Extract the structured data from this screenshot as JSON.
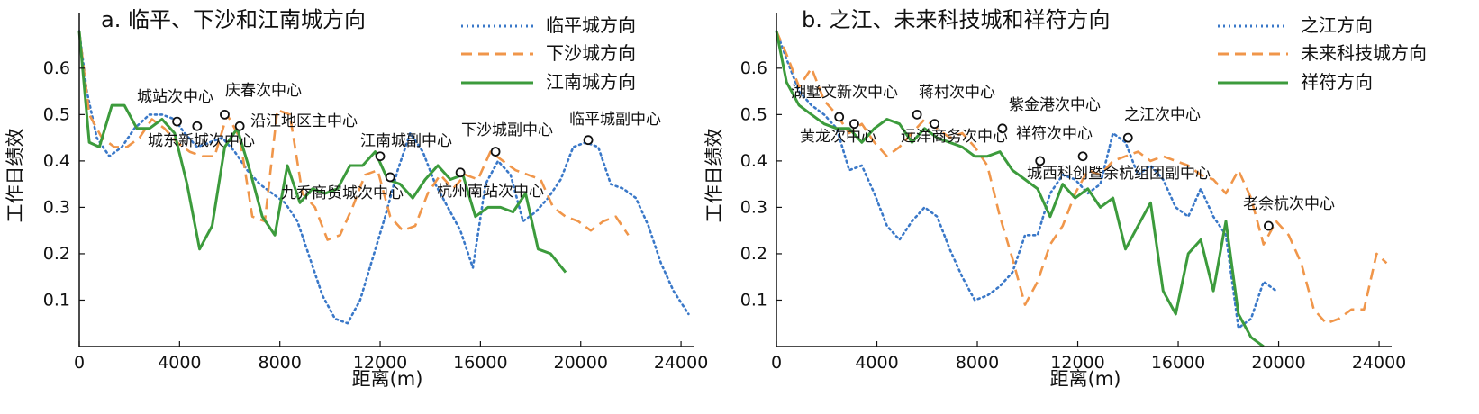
{
  "chart_data": [
    {
      "type": "line",
      "title": "a. 临平、下沙和江南城方向",
      "xlabel": "距离(m)",
      "ylabel": "工作日绩效",
      "xlim": [
        0,
        24500
      ],
      "ylim": [
        0,
        0.72
      ],
      "xticks": [
        0,
        4000,
        8000,
        12000,
        16000,
        20000,
        24000
      ],
      "yticks": [
        0.1,
        0.2,
        0.3,
        0.4,
        0.5,
        0.6
      ],
      "legend_position": "top-right",
      "series": [
        {
          "name": "临平城方向",
          "style": "dotted",
          "color": "#3a78c8",
          "x": [
            0,
            300,
            700,
            1200,
            1700,
            2200,
            2800,
            3300,
            3800,
            4200,
            4700,
            5200,
            5700,
            6200,
            6700,
            7200,
            7700,
            8200,
            8700,
            9200,
            9700,
            10200,
            10700,
            11200,
            11700,
            12200,
            12700,
            13200,
            13700,
            14200,
            14700,
            15200,
            15700,
            16200,
            16700,
            17200,
            17700,
            18200,
            18700,
            19200,
            19700,
            20200,
            20700,
            21200,
            21700,
            22200,
            22700,
            23200,
            23700,
            24300
          ],
          "y": [
            0.68,
            0.55,
            0.45,
            0.41,
            0.43,
            0.47,
            0.5,
            0.5,
            0.49,
            0.46,
            0.43,
            0.44,
            0.45,
            0.42,
            0.38,
            0.35,
            0.33,
            0.31,
            0.27,
            0.19,
            0.11,
            0.06,
            0.05,
            0.1,
            0.19,
            0.28,
            0.38,
            0.46,
            0.42,
            0.35,
            0.3,
            0.25,
            0.17,
            0.35,
            0.4,
            0.37,
            0.27,
            0.29,
            0.32,
            0.36,
            0.43,
            0.44,
            0.43,
            0.35,
            0.34,
            0.32,
            0.26,
            0.18,
            0.12,
            0.07
          ]
        },
        {
          "name": "下沙城方向",
          "style": "dashed",
          "color": "#f0964a",
          "x": [
            0,
            400,
            900,
            1400,
            1900,
            2400,
            2900,
            3400,
            3900,
            4400,
            4900,
            5400,
            5900,
            6400,
            6900,
            7400,
            7900,
            8400,
            8900,
            9400,
            9900,
            10400,
            10900,
            11400,
            11900,
            12400,
            12900,
            13400,
            13900,
            14400,
            14900,
            15400,
            15900,
            16400,
            16900,
            17400,
            17900,
            18400,
            18900,
            19400,
            19900,
            20400,
            20900,
            21400,
            21900
          ],
          "y": [
            0.68,
            0.5,
            0.45,
            0.43,
            0.43,
            0.45,
            0.49,
            0.47,
            0.44,
            0.42,
            0.41,
            0.41,
            0.5,
            0.45,
            0.28,
            0.27,
            0.51,
            0.5,
            0.33,
            0.3,
            0.23,
            0.24,
            0.3,
            0.37,
            0.38,
            0.28,
            0.25,
            0.26,
            0.33,
            0.37,
            0.34,
            0.37,
            0.36,
            0.42,
            0.4,
            0.38,
            0.37,
            0.36,
            0.3,
            0.28,
            0.27,
            0.25,
            0.27,
            0.28,
            0.24
          ]
        },
        {
          "name": "江南城方向",
          "style": "solid",
          "color": "#3c9b3c",
          "x": [
            0,
            400,
            800,
            1300,
            1800,
            2300,
            2800,
            3300,
            3800,
            4300,
            4800,
            5300,
            5800,
            6300,
            6800,
            7300,
            7800,
            8300,
            8800,
            9300,
            9800,
            10300,
            10800,
            11300,
            11800,
            12300,
            12800,
            13300,
            13800,
            14300,
            14800,
            15300,
            15800,
            16300,
            16800,
            17300,
            17800,
            18300,
            18800,
            19400
          ],
          "y": [
            0.68,
            0.44,
            0.43,
            0.52,
            0.52,
            0.47,
            0.47,
            0.49,
            0.46,
            0.35,
            0.21,
            0.26,
            0.43,
            0.47,
            0.38,
            0.28,
            0.24,
            0.39,
            0.31,
            0.34,
            0.33,
            0.34,
            0.39,
            0.39,
            0.42,
            0.36,
            0.35,
            0.32,
            0.36,
            0.39,
            0.36,
            0.37,
            0.28,
            0.3,
            0.3,
            0.29,
            0.33,
            0.21,
            0.2,
            0.16
          ]
        }
      ],
      "points": [
        {
          "label": "城站次中心",
          "x": 3900,
          "y": 0.485
        },
        {
          "label": "城东新城次中心",
          "x": 4700,
          "y": 0.475
        },
        {
          "label": "庆春次中心",
          "x": 5800,
          "y": 0.5
        },
        {
          "label": "沿江地区主中心",
          "x": 6400,
          "y": 0.475
        },
        {
          "label": "九乔商贸城次中心",
          "x": 12400,
          "y": 0.365
        },
        {
          "label": "江南城副中心",
          "x": 12000,
          "y": 0.41
        },
        {
          "label": "杭州南站次中心",
          "x": 15200,
          "y": 0.375
        },
        {
          "label": "下沙城副中心",
          "x": 16600,
          "y": 0.42
        },
        {
          "label": "临平城副中心",
          "x": 20300,
          "y": 0.445
        }
      ]
    },
    {
      "type": "line",
      "title": "b. 之江、未来科技城和祥符方向",
      "xlabel": "距离(m)",
      "ylabel": "工作日绩效",
      "xlim": [
        0,
        24500
      ],
      "ylim": [
        0,
        0.72
      ],
      "xticks": [
        0,
        4000,
        8000,
        12000,
        16000,
        20000,
        24000
      ],
      "yticks": [
        0.1,
        0.2,
        0.3,
        0.4,
        0.5,
        0.6
      ],
      "legend_position": "top-right",
      "series": [
        {
          "name": "之江方向",
          "style": "dotted",
          "color": "#3a78c8",
          "x": [
            0,
            400,
            900,
            1400,
            1900,
            2400,
            2900,
            3400,
            3900,
            4400,
            4900,
            5400,
            5900,
            6400,
            6900,
            7400,
            7900,
            8400,
            8900,
            9400,
            9900,
            10400,
            10900,
            11400,
            11900,
            12400,
            12900,
            13400,
            13900,
            14400,
            14900,
            15400,
            15900,
            16400,
            16900,
            17400,
            17900,
            18400,
            18900,
            19400,
            19900
          ],
          "y": [
            0.68,
            0.62,
            0.55,
            0.52,
            0.5,
            0.47,
            0.38,
            0.39,
            0.33,
            0.26,
            0.23,
            0.27,
            0.3,
            0.28,
            0.21,
            0.15,
            0.1,
            0.11,
            0.13,
            0.16,
            0.24,
            0.24,
            0.33,
            0.37,
            0.36,
            0.33,
            0.35,
            0.46,
            0.44,
            0.37,
            0.39,
            0.36,
            0.3,
            0.28,
            0.34,
            0.28,
            0.24,
            0.04,
            0.06,
            0.14,
            0.12
          ]
        },
        {
          "name": "未来科技城方向",
          "style": "dashed",
          "color": "#f0964a",
          "x": [
            0,
            400,
            900,
            1400,
            1900,
            2400,
            2900,
            3400,
            3900,
            4400,
            4900,
            5400,
            5900,
            6400,
            6900,
            7400,
            7900,
            8400,
            8900,
            9400,
            9900,
            10400,
            10900,
            11400,
            11900,
            12400,
            12900,
            13400,
            13900,
            14400,
            14900,
            15400,
            15900,
            16400,
            16900,
            17400,
            17900,
            18400,
            18900,
            19400,
            19900,
            20400,
            20900,
            21400,
            21900,
            22400,
            22900,
            23400,
            23900,
            24300
          ],
          "y": [
            0.68,
            0.63,
            0.56,
            0.6,
            0.53,
            0.5,
            0.46,
            0.48,
            0.44,
            0.41,
            0.43,
            0.46,
            0.49,
            0.47,
            0.45,
            0.46,
            0.43,
            0.39,
            0.28,
            0.19,
            0.09,
            0.14,
            0.22,
            0.26,
            0.33,
            0.38,
            0.37,
            0.4,
            0.41,
            0.42,
            0.4,
            0.41,
            0.4,
            0.39,
            0.37,
            0.36,
            0.33,
            0.38,
            0.32,
            0.22,
            0.27,
            0.24,
            0.18,
            0.08,
            0.05,
            0.06,
            0.08,
            0.08,
            0.2,
            0.18
          ]
        },
        {
          "name": "祥符方向",
          "style": "solid",
          "color": "#3c9b3c",
          "x": [
            0,
            400,
            900,
            1400,
            1900,
            2400,
            2900,
            3400,
            3900,
            4400,
            4900,
            5400,
            5900,
            6400,
            6900,
            7400,
            7900,
            8400,
            8900,
            9400,
            9900,
            10400,
            10900,
            11400,
            11900,
            12400,
            12900,
            13400,
            13900,
            14400,
            14900,
            15400,
            15900,
            16400,
            16900,
            17400,
            17900,
            18400,
            18900,
            19400
          ],
          "y": [
            0.68,
            0.57,
            0.52,
            0.5,
            0.48,
            0.47,
            0.47,
            0.44,
            0.47,
            0.49,
            0.48,
            0.44,
            0.47,
            0.45,
            0.44,
            0.43,
            0.41,
            0.41,
            0.42,
            0.38,
            0.36,
            0.34,
            0.28,
            0.35,
            0.32,
            0.34,
            0.3,
            0.32,
            0.21,
            0.26,
            0.31,
            0.12,
            0.07,
            0.2,
            0.23,
            0.12,
            0.27,
            0.07,
            0.02,
            0.0
          ]
        }
      ],
      "points": [
        {
          "label": "湖墅文新次中心",
          "x": 2500,
          "y": 0.495
        },
        {
          "label": "黄龙次中心",
          "x": 3100,
          "y": 0.48
        },
        {
          "label": "蒋村次中心",
          "x": 5600,
          "y": 0.5
        },
        {
          "label": "远洋商务次中心",
          "x": 6300,
          "y": 0.48
        },
        {
          "label": "紫金港次中心",
          "x": 9000,
          "y": 0.47
        },
        {
          "label": "祥符次中心",
          "x": 12200,
          "y": 0.41
        },
        {
          "label": "城西科创暨余杭组团副中心",
          "x": 10500,
          "y": 0.4
        },
        {
          "label": "之江次中心",
          "x": 14000,
          "y": 0.45
        },
        {
          "label": "老余杭次中心",
          "x": 19600,
          "y": 0.26
        }
      ]
    }
  ]
}
